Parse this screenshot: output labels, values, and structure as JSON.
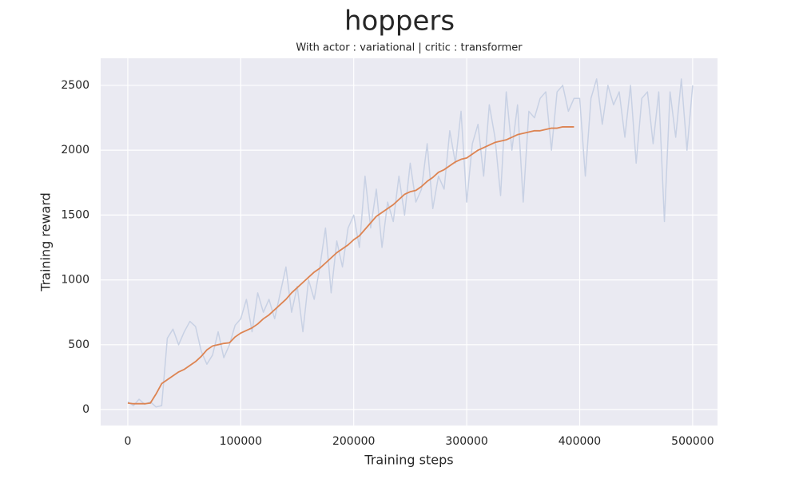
{
  "chart_data": {
    "type": "line",
    "title": "hoppers",
    "subtitle": "With actor : variational | critic : transformer",
    "x_label": "Training steps",
    "y_label": "Training reward",
    "x": [
      0,
      5000,
      10000,
      15000,
      20000,
      25000,
      30000,
      35000,
      40000,
      45000,
      50000,
      55000,
      60000,
      65000,
      70000,
      75000,
      80000,
      85000,
      90000,
      95000,
      100000,
      105000,
      110000,
      115000,
      120000,
      125000,
      130000,
      135000,
      140000,
      145000,
      150000,
      155000,
      160000,
      165000,
      170000,
      175000,
      180000,
      185000,
      190000,
      195000,
      200000,
      205000,
      210000,
      215000,
      220000,
      225000,
      230000,
      235000,
      240000,
      245000,
      250000,
      255000,
      260000,
      265000,
      270000,
      275000,
      280000,
      285000,
      290000,
      295000,
      300000,
      305000,
      310000,
      315000,
      320000,
      325000,
      330000,
      335000,
      340000,
      345000,
      350000,
      355000,
      360000,
      365000,
      370000,
      375000,
      380000,
      385000,
      390000,
      395000,
      400000,
      405000,
      410000,
      415000,
      420000,
      425000,
      430000,
      435000,
      440000,
      445000,
      450000,
      455000,
      460000,
      465000,
      470000,
      475000,
      480000,
      485000,
      490000,
      495000,
      500000
    ],
    "series": [
      {
        "color": "#c8d1e4",
        "values": [
          60,
          30,
          80,
          40,
          60,
          20,
          30,
          550,
          620,
          500,
          600,
          680,
          640,
          450,
          350,
          420,
          600,
          400,
          500,
          650,
          700,
          850,
          600,
          900,
          750,
          850,
          700,
          900,
          1100,
          750,
          950,
          600,
          1000,
          850,
          1100,
          1400,
          900,
          1300,
          1100,
          1400,
          1500,
          1250,
          1800,
          1400,
          1700,
          1250,
          1600,
          1450,
          1800,
          1500,
          1900,
          1600,
          1700,
          2050,
          1550,
          1800,
          1700,
          2150,
          1900,
          2300,
          1600,
          2050,
          2200,
          1800,
          2350,
          2100,
          1650,
          2450,
          2000,
          2350,
          1600,
          2300,
          2250,
          2400,
          2450,
          2000,
          2450,
          2500,
          2300,
          2400,
          2400,
          1800,
          2400,
          2550,
          2200,
          2500,
          2350,
          2450,
          2100,
          2500,
          1900,
          2400,
          2450,
          2050,
          2450,
          1450,
          2450,
          2100,
          2550,
          2000,
          2500
        ]
      },
      {
        "color": "#dd8452",
        "values": [
          50,
          45,
          45,
          45,
          50,
          120,
          200,
          230,
          260,
          290,
          310,
          340,
          370,
          410,
          460,
          490,
          500,
          510,
          515,
          560,
          590,
          610,
          630,
          660,
          700,
          730,
          770,
          810,
          850,
          900,
          940,
          980,
          1020,
          1060,
          1090,
          1130,
          1170,
          1210,
          1240,
          1270,
          1310,
          1340,
          1390,
          1440,
          1490,
          1520,
          1550,
          1580,
          1620,
          1660,
          1680,
          1690,
          1720,
          1760,
          1790,
          1830,
          1850,
          1880,
          1910,
          1930,
          1940,
          1970,
          2000,
          2020,
          2040,
          2060,
          2070,
          2080,
          2100,
          2120,
          2130,
          2140,
          2150,
          2150,
          2160,
          2170,
          2170,
          2180,
          2180,
          2180,
          null,
          null,
          null,
          null,
          null,
          null,
          null,
          null,
          null,
          null,
          null,
          null,
          null,
          null,
          null,
          null,
          null,
          null,
          null,
          null,
          null
        ]
      }
    ],
    "xlim": [
      -24000,
      522000
    ],
    "ylim": [
      -123,
      2709
    ],
    "xticks": [
      0,
      100000,
      200000,
      300000,
      400000,
      500000
    ],
    "yticks": [
      0,
      500,
      1000,
      1500,
      2000,
      2500
    ],
    "grid": true
  }
}
